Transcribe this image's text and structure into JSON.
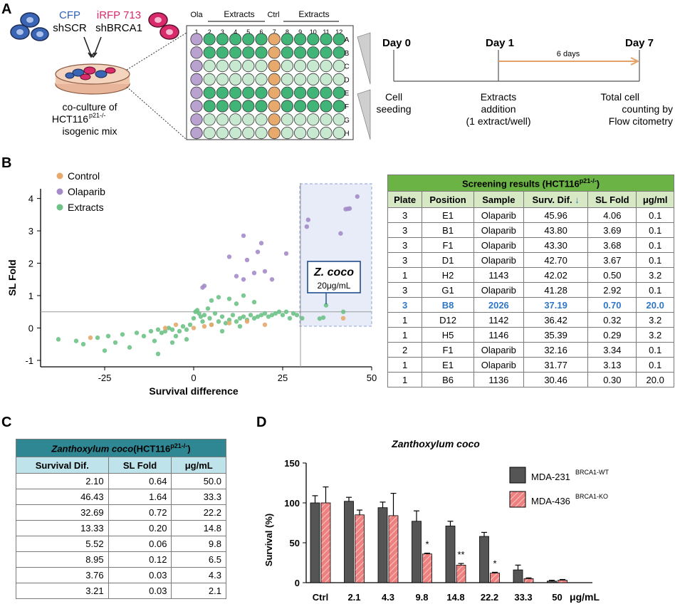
{
  "panels": {
    "a": "A",
    "b": "B",
    "c": "C",
    "d": "D"
  },
  "panel_a": {
    "cfp_label": "CFP",
    "shscr_label": "shSCR",
    "irfp_label": "iRFP 713",
    "shbrca1_label": "shBRCA1",
    "coculture_line1": "co-culture of",
    "coculture_line2": "HCT116",
    "coculture_sup": "p21-/-",
    "coculture_line3": "isogenic mix",
    "plate_ola": "Ola",
    "plate_ctrl": "Ctrl",
    "plate_extracts": "Extracts",
    "columns": [
      "1",
      "2",
      "3",
      "4",
      "5",
      "6",
      "7",
      "8",
      "9",
      "10",
      "11",
      "12"
    ],
    "rows": [
      "A",
      "B",
      "C",
      "D",
      "E",
      "F",
      "G",
      "H"
    ],
    "colors": {
      "ola": "#b9a1d0",
      "ctrl": "#e7a96c",
      "extract_dark": "#41b477",
      "extract_light": "#c7e9d0",
      "cfp": "#3a64b4",
      "irfp": "#d92b6b"
    },
    "timeline": {
      "day0": "Day 0",
      "day1": "Day 1",
      "day7": "Day 7",
      "interval": "6 days",
      "step0_l1": "Cell",
      "step0_l2": "seeding",
      "step1_l1": "Extracts",
      "step1_l2": "addition",
      "step1_l3": "(1 extract/well)",
      "step2_l1": "Total cell",
      "step2_l2": "counting by",
      "step2_l3": "Flow citometry"
    }
  },
  "scatter": {
    "ylabel": "SL Fold",
    "xlabel": "Survival difference",
    "legend": [
      "Control",
      "Olaparib",
      "Extracts"
    ],
    "colors": {
      "Control": "#e7a96c",
      "Olaparib": "#a58cc9",
      "Extracts": "#6dc287"
    },
    "annotation_title": "Z. coco",
    "annotation_sub": "20μg/mL",
    "xticks": [
      "-25",
      "0",
      "25",
      "50"
    ],
    "yticks": [
      "4",
      "3",
      "2",
      "1",
      "0",
      "-1"
    ]
  },
  "chart_data": [
    {
      "type": "scatter",
      "xlabel": "Survival difference",
      "ylabel": "SL Fold",
      "xlim": [
        -43,
        50
      ],
      "ylim": [
        -1.2,
        4.3
      ],
      "threshold_x": 30,
      "threshold_y": 0.5,
      "series": [
        {
          "name": "Olaparib",
          "points": [
            [
              45.96,
              4.06
            ],
            [
              43.8,
              3.69
            ],
            [
              43.3,
              3.68
            ],
            [
              42.7,
              3.67
            ],
            [
              41.28,
              2.92
            ],
            [
              32.16,
              3.34
            ],
            [
              31.77,
              3.13
            ],
            [
              19,
              2.62
            ],
            [
              14,
              2.85
            ],
            [
              26,
              2.3
            ],
            [
              18,
              2.35
            ],
            [
              10,
              2.2
            ],
            [
              15,
              2.1
            ],
            [
              17,
              1.7
            ],
            [
              12,
              1.6
            ],
            [
              14,
              1.5
            ],
            [
              20,
              1.75
            ],
            [
              22,
              1.5
            ],
            [
              3,
              1.3
            ],
            [
              2.5,
              1.25
            ]
          ]
        },
        {
          "name": "Control",
          "points": [
            [
              -8,
              0
            ],
            [
              -5,
              0.1
            ],
            [
              0,
              0
            ],
            [
              5,
              0.1
            ],
            [
              10,
              0.15
            ],
            [
              15,
              0.2
            ],
            [
              -29,
              -0.3
            ],
            [
              20,
              0.1
            ],
            [
              42,
              0.3
            ],
            [
              3,
              0.05
            ]
          ]
        },
        {
          "name": "Extracts",
          "points": [
            [
              42.02,
              0.5
            ],
            [
              37.19,
              0.7
            ],
            [
              36.42,
              0.32
            ],
            [
              35.39,
              0.29
            ],
            [
              30.46,
              0.3
            ],
            [
              -38,
              -0.35
            ],
            [
              -33,
              -0.4
            ],
            [
              -31,
              -0.5
            ],
            [
              -27,
              -0.3
            ],
            [
              -24,
              -0.25
            ],
            [
              -22,
              -0.45
            ],
            [
              -20,
              -0.2
            ],
            [
              -18,
              -0.6
            ],
            [
              -16,
              -0.15
            ],
            [
              -14,
              -0.25
            ],
            [
              -12,
              -0.1
            ],
            [
              -11,
              -0.4
            ],
            [
              -10,
              -0.05
            ],
            [
              -9,
              -0.15
            ],
            [
              -8,
              -0.1
            ],
            [
              -7,
              0.0
            ],
            [
              -6,
              -0.05
            ],
            [
              -5,
              -0.25
            ],
            [
              -4,
              -0.1
            ],
            [
              -3,
              0.05
            ],
            [
              -2,
              -0.05
            ],
            [
              -1,
              0.1
            ],
            [
              0,
              0.3
            ],
            [
              0.5,
              0.5
            ],
            [
              1,
              0.55
            ],
            [
              1.5,
              0.45
            ],
            [
              2,
              0.35
            ],
            [
              2.5,
              0.2
            ],
            [
              3,
              0.4
            ],
            [
              4,
              0.6
            ],
            [
              4.5,
              0.3
            ],
            [
              5,
              0.1
            ],
            [
              6,
              0.45
            ],
            [
              7,
              0.2
            ],
            [
              8,
              0.35
            ],
            [
              9,
              0.15
            ],
            [
              10,
              0.25
            ],
            [
              11,
              0.4
            ],
            [
              12,
              0.2
            ],
            [
              13,
              0.3
            ],
            [
              14,
              0.35
            ],
            [
              15,
              0.25
            ],
            [
              16,
              0.4
            ],
            [
              17,
              0.3
            ],
            [
              18,
              0.35
            ],
            [
              19,
              0.4
            ],
            [
              20,
              0.45
            ],
            [
              21,
              0.35
            ],
            [
              22,
              0.4
            ],
            [
              23,
              0.45
            ],
            [
              24,
              0.5
            ],
            [
              25,
              0.4
            ],
            [
              26,
              0.5
            ],
            [
              27,
              0.3
            ],
            [
              28,
              0.45
            ],
            [
              29,
              0.4
            ],
            [
              -2,
              -0.35
            ],
            [
              -6,
              -0.45
            ],
            [
              5,
              0.85
            ],
            [
              7,
              0.95
            ],
            [
              10,
              0.9
            ],
            [
              12,
              0.75
            ],
            [
              14,
              1.0
            ],
            [
              17,
              0.8
            ],
            [
              -25,
              -0.7
            ],
            [
              -10,
              -0.8
            ],
            [
              8,
              -0.1
            ],
            [
              13,
              0.05
            ]
          ]
        }
      ]
    },
    {
      "type": "bar",
      "title": "Zanthoxylum coco",
      "ylabel": "Survival (%)",
      "xlabel": "μg/mL",
      "categories": [
        "Ctrl",
        "2.1",
        "4.3",
        "9.8",
        "14.8",
        "22.2",
        "33.3",
        "50"
      ],
      "ylim": [
        0,
        150
      ],
      "yticks": [
        "0",
        "50",
        "100",
        "150"
      ],
      "series": [
        {
          "name": "MDA-231",
          "sup": "BRCA1-WT",
          "color": "#555555",
          "values": [
            100,
            102,
            94,
            77,
            71,
            58,
            16,
            2
          ],
          "errors": [
            9,
            5,
            7,
            13,
            6,
            5,
            6,
            1
          ]
        },
        {
          "name": "MDA-436",
          "sup": "BRCA1-KO",
          "color": "#ee8080",
          "values": [
            100,
            85,
            84,
            36,
            22,
            12,
            5,
            3
          ],
          "errors": [
            20,
            6,
            28,
            1,
            2,
            1,
            1,
            1
          ]
        }
      ],
      "significance": [
        {
          "category": "9.8",
          "label": "*"
        },
        {
          "category": "14.8",
          "label": "**"
        },
        {
          "category": "22.2",
          "label": "*"
        }
      ]
    }
  ],
  "table_b": {
    "title": "Screening results (HCT116",
    "title_sup": "p21-/-",
    "title_end": ")",
    "headers": [
      "Plate",
      "Position",
      "Sample",
      "Surv. Dif. ↓",
      "SL Fold",
      "μg/ml"
    ],
    "rows": [
      [
        "3",
        "E1",
        "Olaparib",
        "45.96",
        "4.06",
        "0.1"
      ],
      [
        "3",
        "B1",
        "Olaparib",
        "43.80",
        "3.69",
        "0.1"
      ],
      [
        "3",
        "F1",
        "Olaparib",
        "43.30",
        "3.68",
        "0.1"
      ],
      [
        "3",
        "D1",
        "Olaparib",
        "42.70",
        "3.67",
        "0.1"
      ],
      [
        "1",
        "H2",
        "1143",
        "42.02",
        "0.50",
        "3.2"
      ],
      [
        "3",
        "G1",
        "Olaparib",
        "41.28",
        "2.92",
        "0.1"
      ],
      [
        "3",
        "B8",
        "2026",
        "37.19",
        "0.70",
        "20.0"
      ],
      [
        "1",
        "D12",
        "1142",
        "36.42",
        "0.32",
        "3.2"
      ],
      [
        "1",
        "H5",
        "1146",
        "35.39",
        "0.29",
        "3.2"
      ],
      [
        "2",
        "F1",
        "Olaparib",
        "32.16",
        "3.34",
        "0.1"
      ],
      [
        "1",
        "E1",
        "Olaparib",
        "31.77",
        "3.13",
        "0.1"
      ],
      [
        "1",
        "B6",
        "1136",
        "30.46",
        "0.30",
        "20.0"
      ]
    ],
    "highlight_row": 6
  },
  "table_c": {
    "title": "Zanthoxylum coco",
    "title_cell": "(HCT116",
    "title_sup": "p21-/-",
    "title_end": ")",
    "headers": [
      "Survival Dif.",
      "SL Fold",
      "μg/mL"
    ],
    "rows": [
      [
        "2.10",
        "0.64",
        "50.0"
      ],
      [
        "46.43",
        "1.64",
        "33.3"
      ],
      [
        "32.69",
        "0.72",
        "22.2"
      ],
      [
        "13.33",
        "0.20",
        "14.8"
      ],
      [
        "5.52",
        "0.06",
        "9.8"
      ],
      [
        "8.95",
        "0.12",
        "6.5"
      ],
      [
        "3.76",
        "0.03",
        "4.3"
      ],
      [
        "3.21",
        "0.03",
        "2.1"
      ]
    ]
  }
}
